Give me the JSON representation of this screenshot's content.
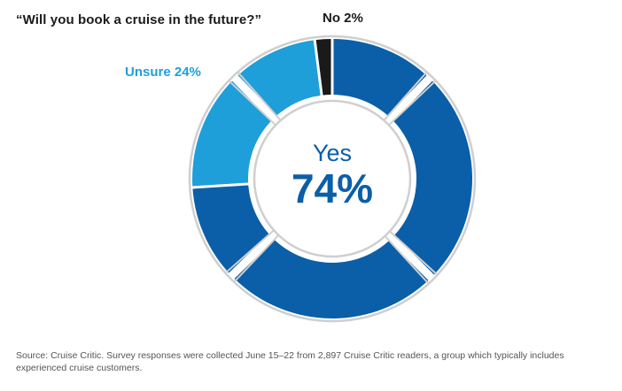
{
  "chart_data": {
    "type": "pie",
    "title": "“Will you book a cruise in the future?”",
    "slices": [
      {
        "label": "Yes",
        "value": 74,
        "color": "#0a5fa8",
        "display": "74%"
      },
      {
        "label": "Unsure",
        "value": 24,
        "color": "#1e9fda",
        "display": "24%"
      },
      {
        "label": "No",
        "value": 2,
        "color": "#1a1a1a",
        "display": "2%"
      }
    ],
    "labels": {
      "no": "No 2%",
      "unsure": "Unsure 24%",
      "center_word": "Yes",
      "center_value": "74%"
    },
    "source": "Source: Cruise Critic. Survey responses were collected June 15–22 from 2,897 Cruise Critic readers, a group which typically includes experienced cruise customers."
  }
}
